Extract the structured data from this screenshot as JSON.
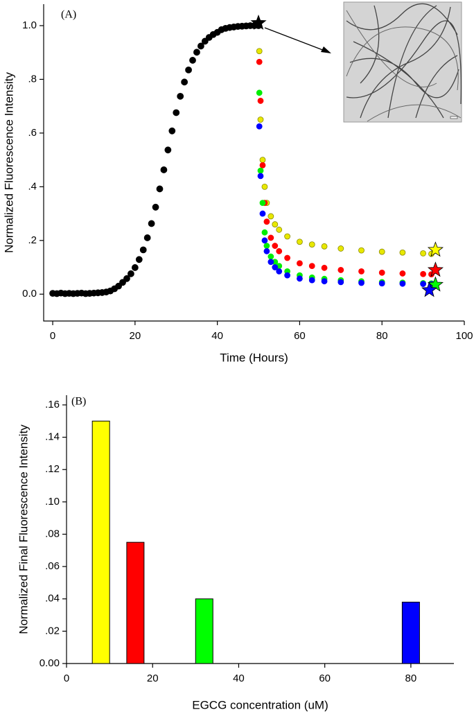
{
  "chart_data": [
    {
      "type": "scatter",
      "annotation": "(A)",
      "x_label": "Time (Hours)",
      "y_label": "Normalized Fluorescence Intensity",
      "xlim": [
        -2.2,
        100
      ],
      "xticks": [
        0,
        20,
        40,
        60,
        80,
        100
      ],
      "ylim": [
        -0.1,
        1.08
      ],
      "yticks": [
        {
          "value": 0,
          "label": "0.0"
        },
        {
          "value": 0.2,
          "label": ".2"
        },
        {
          "value": 0.4,
          "label": ".4"
        },
        {
          "value": 0.6,
          "label": ".6"
        },
        {
          "value": 0.8,
          "label": ".8"
        },
        {
          "value": 1.0,
          "label": "1.0"
        }
      ],
      "series": [
        {
          "color": "#000000",
          "x": [
            0,
            1,
            2,
            3,
            4,
            5,
            6,
            7,
            8,
            9,
            10,
            11,
            12,
            13,
            14,
            15,
            16,
            17,
            18,
            19,
            20,
            21,
            22,
            23,
            24,
            25,
            26,
            27,
            28,
            29,
            30,
            31,
            32,
            33,
            34,
            35,
            36,
            37,
            38,
            39,
            40,
            41,
            42,
            43,
            44,
            45,
            46,
            47,
            48,
            49,
            50
          ],
          "values": [
            0.003,
            0.002,
            0.004,
            0.002,
            0.003,
            0.002,
            0.003,
            0.004,
            0.002,
            0.003,
            0.004,
            0.005,
            0.006,
            0.008,
            0.012,
            0.02,
            0.03,
            0.044,
            0.058,
            0.076,
            0.099,
            0.129,
            0.165,
            0.21,
            0.263,
            0.324,
            0.392,
            0.463,
            0.537,
            0.608,
            0.676,
            0.737,
            0.79,
            0.835,
            0.871,
            0.901,
            0.924,
            0.942,
            0.956,
            0.967,
            0.975,
            0.985,
            0.99,
            0.993,
            0.995,
            0.997,
            0.998,
            0.999,
            1.0,
            1.0,
            1.0
          ]
        },
        {
          "color": "#e8e800",
          "x": [
            50.2,
            50.5,
            51,
            51.5,
            52,
            53,
            54,
            55,
            57,
            60,
            63,
            66,
            70,
            75,
            80,
            85,
            90,
            92
          ],
          "values": [
            0.905,
            0.65,
            0.5,
            0.4,
            0.34,
            0.29,
            0.26,
            0.24,
            0.215,
            0.195,
            0.185,
            0.178,
            0.17,
            0.163,
            0.158,
            0.155,
            0.152,
            0.15
          ]
        },
        {
          "color": "#ff0000",
          "x": [
            50.2,
            50.5,
            51,
            51.5,
            52,
            53,
            54,
            55,
            57,
            60,
            63,
            66,
            70,
            75,
            80,
            85,
            90,
            92
          ],
          "values": [
            0.865,
            0.72,
            0.48,
            0.34,
            0.27,
            0.21,
            0.18,
            0.16,
            0.135,
            0.115,
            0.105,
            0.098,
            0.09,
            0.085,
            0.08,
            0.077,
            0.075,
            0.074
          ]
        },
        {
          "color": "#00ee00",
          "x": [
            50.2,
            50.5,
            51,
            51.5,
            52,
            53,
            54,
            55,
            57,
            60,
            63,
            66,
            70,
            75,
            80,
            85,
            90,
            92
          ],
          "values": [
            0.75,
            0.46,
            0.34,
            0.23,
            0.18,
            0.14,
            0.12,
            0.105,
            0.085,
            0.07,
            0.062,
            0.057,
            0.052,
            0.048,
            0.045,
            0.043,
            0.041,
            0.04
          ]
        },
        {
          "color": "#0000ff",
          "x": [
            50.2,
            50.5,
            51,
            51.5,
            52,
            53,
            54,
            55,
            57,
            60,
            63,
            66,
            70,
            75,
            80,
            85,
            90,
            92
          ],
          "values": [
            0.625,
            0.44,
            0.3,
            0.2,
            0.16,
            0.12,
            0.1,
            0.085,
            0.07,
            0.058,
            0.052,
            0.048,
            0.045,
            0.042,
            0.04,
            0.039,
            0.038,
            0.037
          ]
        }
      ],
      "star_markers": {
        "x": [
          50,
          93,
          93,
          93,
          91.5
        ],
        "values": [
          1.01,
          0.165,
          0.09,
          0.035,
          0.015
        ],
        "colors": [
          "#000000",
          "#ffff00",
          "#ff0000",
          "#00ff00",
          "#0000ff"
        ]
      }
    },
    {
      "type": "bar",
      "annotation": "(B)",
      "x_label": "EGCG concentration (uM)",
      "y_label": "Normalized Final Fluorescence Intensity",
      "xlim": [
        0,
        90
      ],
      "xticks": [
        0,
        20,
        40,
        60,
        80
      ],
      "ylim": [
        0,
        0.166
      ],
      "yticks": [
        {
          "value": 0,
          "label": "0.00"
        },
        {
          "value": 0.02,
          "label": ".02"
        },
        {
          "value": 0.04,
          "label": ".04"
        },
        {
          "value": 0.06,
          "label": ".06"
        },
        {
          "value": 0.08,
          "label": ".08"
        },
        {
          "value": 0.1,
          "label": ".10"
        },
        {
          "value": 0.12,
          "label": ".12"
        },
        {
          "value": 0.14,
          "label": ".14"
        },
        {
          "value": 0.16,
          "label": ".16"
        }
      ],
      "x": [
        8,
        16,
        32,
        80
      ],
      "values": [
        0.15,
        0.075,
        0.04,
        0.038
      ],
      "colors": [
        "#ffff00",
        "#ff0000",
        "#00ff00",
        "#0000ff"
      ]
    }
  ]
}
